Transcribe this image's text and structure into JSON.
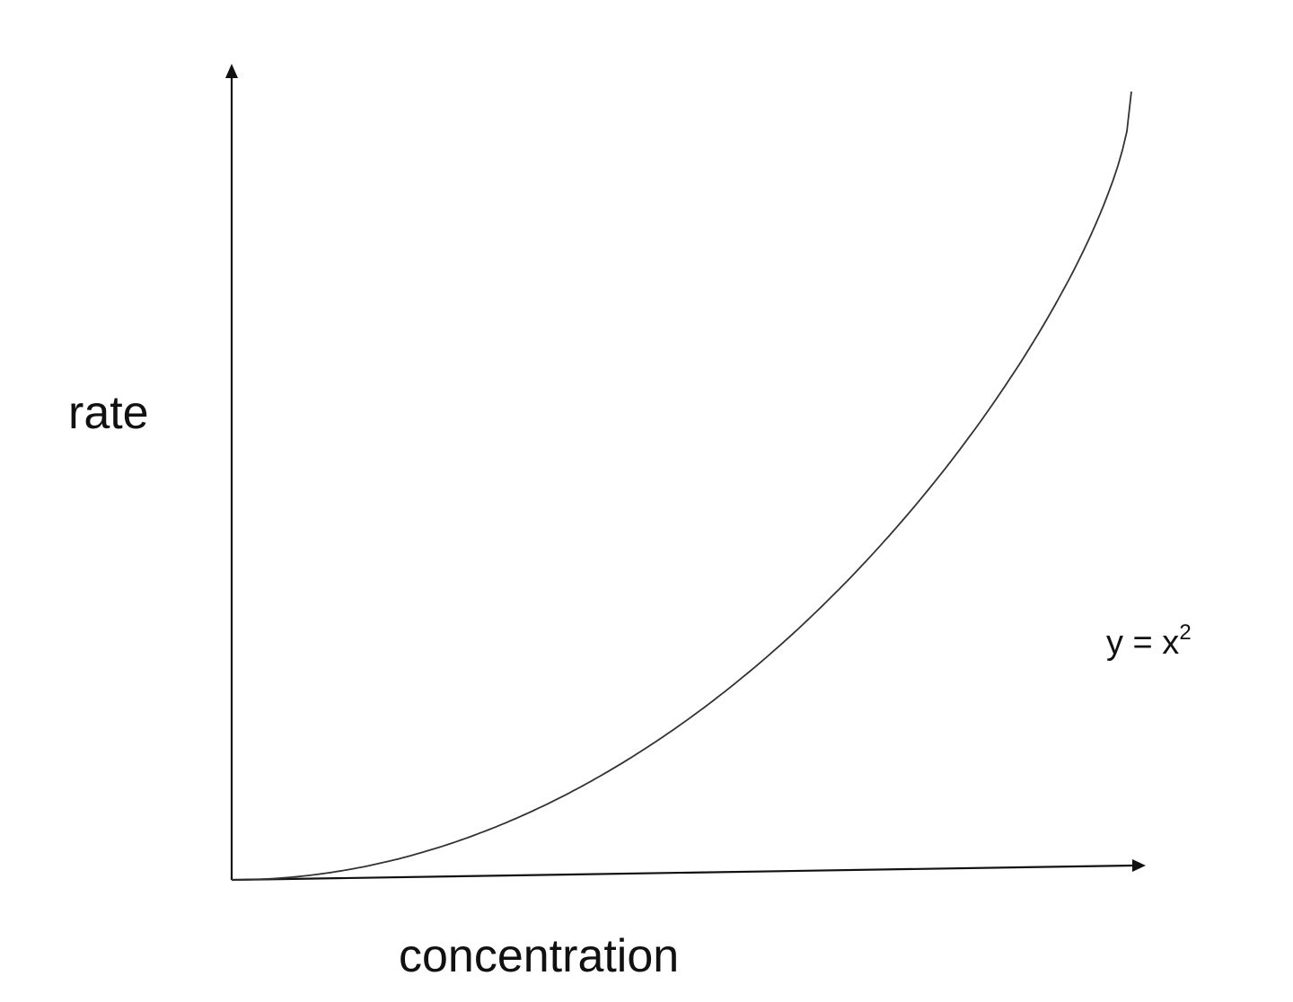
{
  "chart_data": {
    "type": "line",
    "xlabel": "concentration",
    "ylabel": "rate",
    "grid": false,
    "legend": "none",
    "axis_ticks": "none",
    "series": [
      {
        "x": [
          0,
          0.1,
          0.2,
          0.3,
          0.4,
          0.5,
          0.6,
          0.7,
          0.8,
          0.9,
          1.0
        ],
        "y": [
          0,
          0.01,
          0.04,
          0.09,
          0.16,
          0.25,
          0.36,
          0.49,
          0.64,
          0.81,
          1.0
        ]
      }
    ],
    "annotations": [
      {
        "text": "y = x",
        "superscript": "2"
      }
    ],
    "colors": {
      "axis": "#111111",
      "curve": "#333333",
      "text": "#111111"
    }
  }
}
